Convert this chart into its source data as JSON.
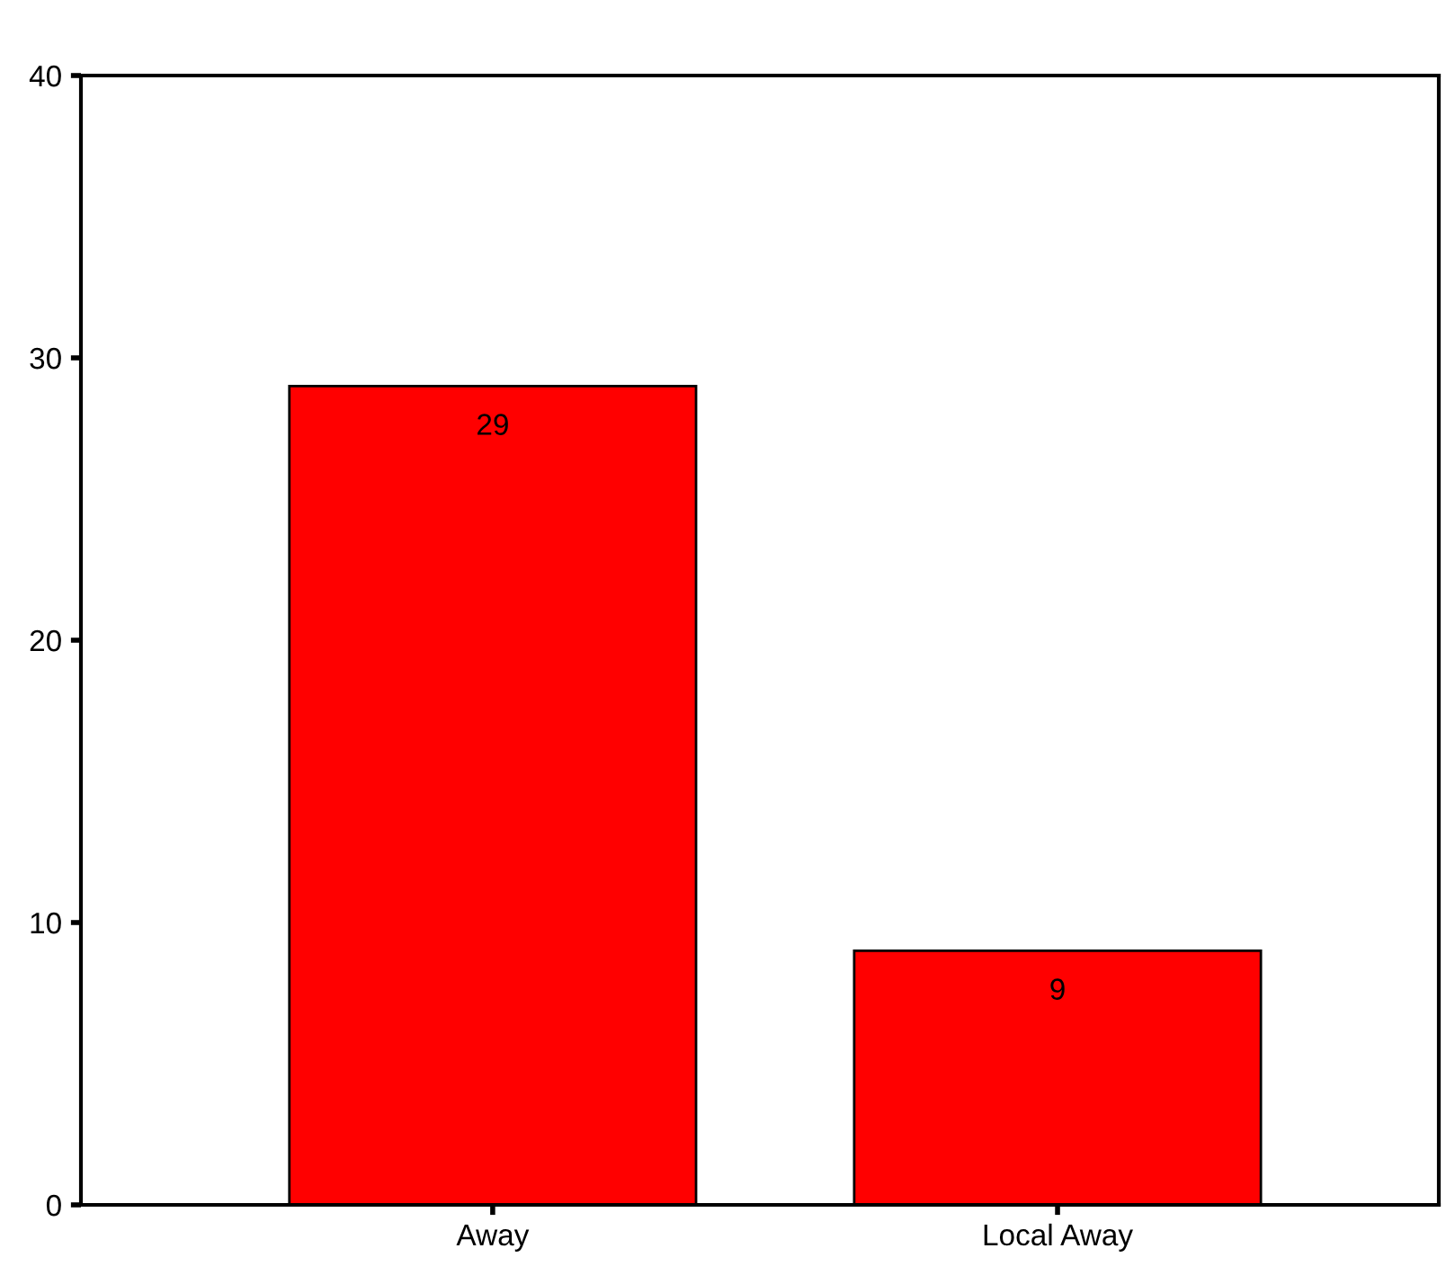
{
  "chart_data": {
    "type": "bar",
    "categories": [
      "Away",
      "Local Away"
    ],
    "values": [
      29,
      9
    ],
    "color": "#ff0000",
    "ylim": [
      0,
      40
    ],
    "yticks": [
      0,
      10,
      20,
      30,
      40
    ],
    "data_labels": true,
    "grid": false,
    "legend": false
  }
}
